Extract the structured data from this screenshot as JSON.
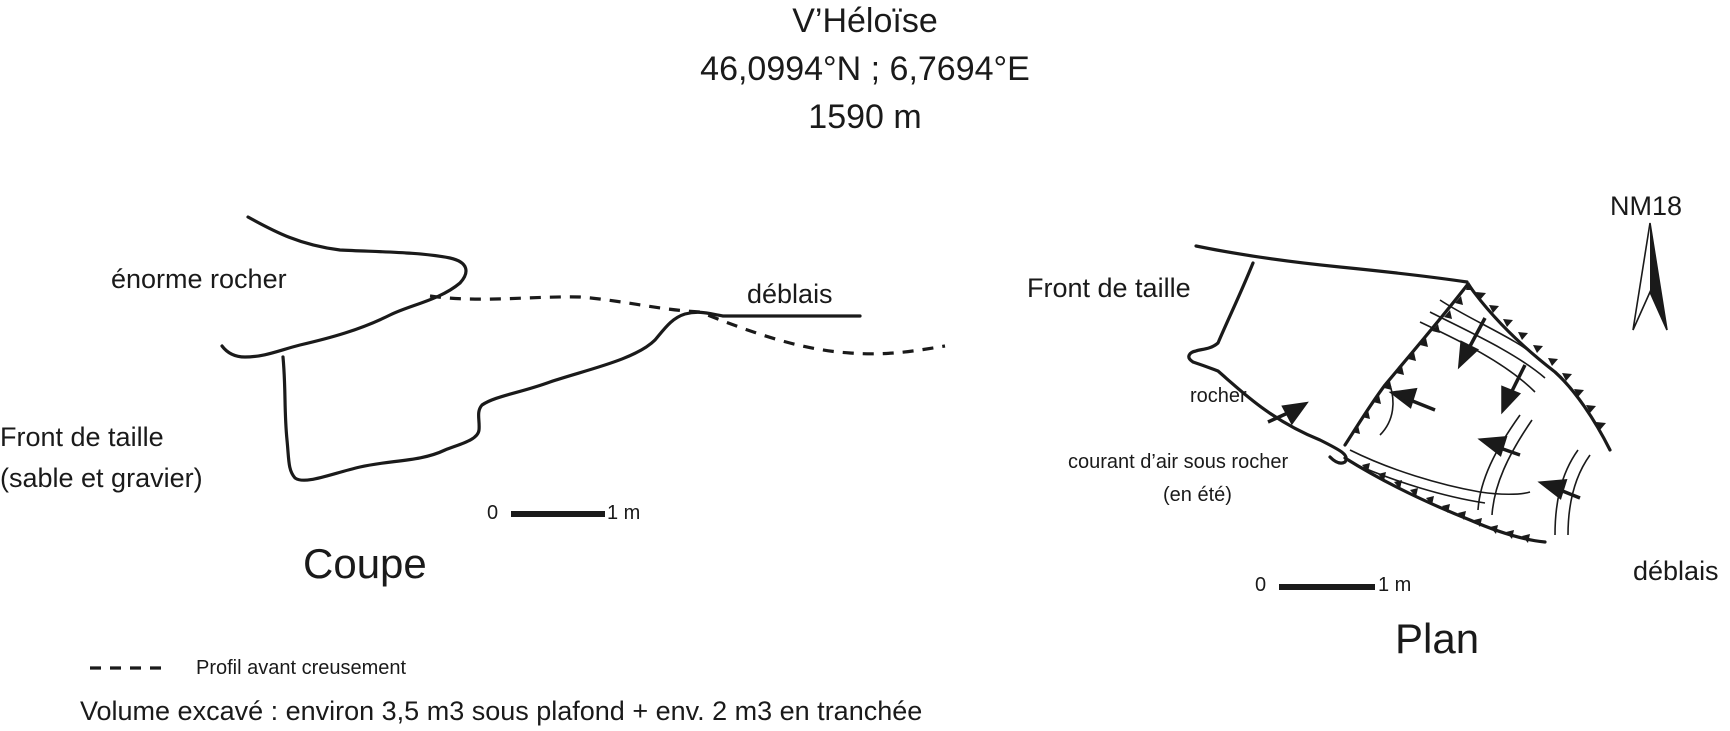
{
  "header": {
    "site_name": "V’Héloïse",
    "coordinates": "46,0994°N ; 6,7694°E",
    "altitude": "1590 m"
  },
  "coupe": {
    "title": "Coupe",
    "label_rock": "énorme rocher",
    "label_spoil": "déblais",
    "label_face_line1": "Front de taille",
    "label_face_line2": "(sable et gravier)",
    "scale_zero": "0",
    "scale_one": "1 m"
  },
  "plan": {
    "title": "Plan",
    "label_face": "Front de taille",
    "label_rock": "rocher",
    "label_draft_line1": "courant d’air sous rocher",
    "label_draft_line2": "(en été)",
    "label_spoil": "déblais",
    "north_label": "NM18",
    "scale_zero": "0",
    "scale_one": "1 m"
  },
  "legend": {
    "dashed_label": "Profil avant creusement"
  },
  "footer": {
    "volume_note": "Volume excavé : environ 3,5 m3 sous plafond + env. 2 m3 en tranchée"
  }
}
